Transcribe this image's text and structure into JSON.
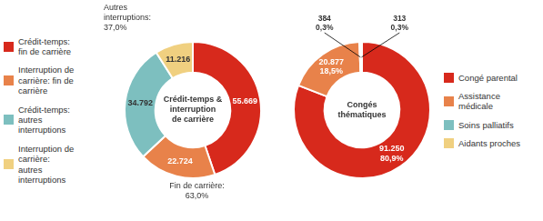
{
  "chart_data": [
    {
      "type": "doughnut",
      "title": "Crédit-temps &\ninterruption\nde carrière",
      "categories": [
        "Crédit-temps:\nfin de carrière",
        "Interruption de\ncarrière: fin de\ncarrière",
        "Crédit-temps:\nautres\ninterruptions",
        "Interruption de\ncarrière:\nautres\ninterruptions"
      ],
      "values": [
        55669,
        22724,
        34792,
        11216
      ],
      "value_labels": [
        "55.669",
        "22.724",
        "34.792",
        "11.216"
      ],
      "colors": [
        "#d7291c",
        "#e8824a",
        "#7dbfbf",
        "#f0d080"
      ],
      "data_labels": true,
      "legend": "left",
      "annotations": [
        "Fin de carrière:\n63,0%",
        "Autres\ninterruptions:\n37,0%"
      ]
    },
    {
      "type": "doughnut",
      "title": "Congés\nthématiques",
      "categories": [
        "Congé parental",
        "Assistance\nmédicale",
        "Soins palliatifs",
        "Aidants proches"
      ],
      "values": [
        91250,
        20877,
        384,
        313
      ],
      "value_labels": [
        "91.250\n80,9%",
        "20.877\n18,5%",
        "384\n0,3%",
        "313\n0,3%"
      ],
      "colors": [
        "#d7291c",
        "#e8824a",
        "#7dbfbf",
        "#f0d080"
      ],
      "data_labels": true,
      "legend": "right"
    }
  ]
}
